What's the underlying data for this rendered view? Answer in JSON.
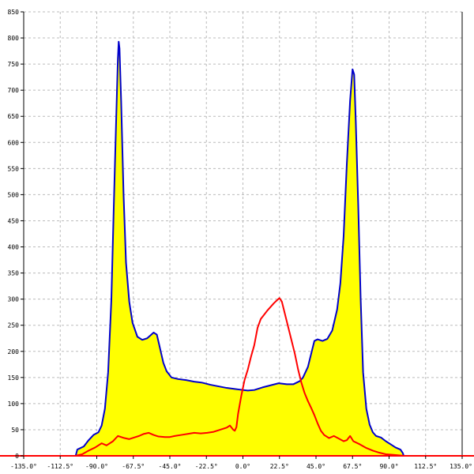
{
  "chart_data": {
    "type": "area",
    "title": "",
    "xlabel": "",
    "ylabel": "",
    "xlim": [
      -135,
      135
    ],
    "ylim": [
      0,
      850
    ],
    "grid": true,
    "x_ticks": [
      -135,
      -112.5,
      -90,
      -67.5,
      -45,
      -22.5,
      0,
      22.5,
      45,
      67.5,
      90,
      112.5,
      135
    ],
    "x_tick_labels": [
      "-135.0°",
      "-112.5°",
      "-90.0°",
      "-67.5°",
      "-45.0°",
      "-22.5°",
      "0.0°",
      "22.5°",
      "45.0°",
      "67.5°",
      "90.0°",
      "112.5°",
      "135.0°"
    ],
    "y_ticks": [
      0,
      50,
      100,
      150,
      200,
      250,
      300,
      350,
      400,
      450,
      500,
      550,
      600,
      650,
      700,
      750,
      800,
      850
    ],
    "y_tick_labels": [
      "0",
      "50",
      "100",
      "150",
      "200",
      "250",
      "300",
      "350",
      "400",
      "450",
      "500",
      "550",
      "600",
      "650",
      "700",
      "750",
      "800",
      "850"
    ],
    "series": [
      {
        "color": "#0000cc",
        "fill": "#ffff00",
        "points": [
          [
            -103,
            0
          ],
          [
            -102,
            12
          ],
          [
            -98,
            18
          ],
          [
            -95,
            30
          ],
          [
            -92,
            40
          ],
          [
            -89,
            45
          ],
          [
            -87,
            58
          ],
          [
            -85,
            90
          ],
          [
            -83,
            160
          ],
          [
            -81,
            300
          ],
          [
            -79.5,
            480
          ],
          [
            -78,
            650
          ],
          [
            -77,
            760
          ],
          [
            -76.5,
            793
          ],
          [
            -76,
            780
          ],
          [
            -75,
            680
          ],
          [
            -73.5,
            500
          ],
          [
            -72,
            370
          ],
          [
            -70,
            295
          ],
          [
            -68,
            255
          ],
          [
            -65,
            228
          ],
          [
            -62,
            222
          ],
          [
            -59,
            225
          ],
          [
            -55,
            236
          ],
          [
            -53,
            232
          ],
          [
            -51,
            205
          ],
          [
            -49,
            178
          ],
          [
            -47,
            162
          ],
          [
            -44,
            150
          ],
          [
            -40,
            147
          ],
          [
            -35,
            145
          ],
          [
            -30,
            142
          ],
          [
            -25,
            140
          ],
          [
            -20,
            136
          ],
          [
            -15,
            133
          ],
          [
            -10,
            130
          ],
          [
            -5,
            128
          ],
          [
            0,
            126
          ],
          [
            3,
            125
          ],
          [
            7,
            126
          ],
          [
            12,
            131
          ],
          [
            17,
            135
          ],
          [
            22,
            139
          ],
          [
            27,
            137
          ],
          [
            31,
            137
          ],
          [
            35,
            143
          ],
          [
            37,
            150
          ],
          [
            40,
            170
          ],
          [
            42,
            195
          ],
          [
            44,
            220
          ],
          [
            46,
            223
          ],
          [
            49,
            220
          ],
          [
            52,
            224
          ],
          [
            55,
            240
          ],
          [
            58,
            280
          ],
          [
            60,
            330
          ],
          [
            62,
            420
          ],
          [
            64,
            560
          ],
          [
            66,
            680
          ],
          [
            67.5,
            740
          ],
          [
            68.5,
            730
          ],
          [
            69.5,
            640
          ],
          [
            71,
            480
          ],
          [
            72.5,
            300
          ],
          [
            74,
            160
          ],
          [
            76,
            90
          ],
          [
            78,
            60
          ],
          [
            80,
            45
          ],
          [
            82,
            38
          ],
          [
            85,
            35
          ],
          [
            88,
            28
          ],
          [
            91,
            22
          ],
          [
            94,
            16
          ],
          [
            97,
            12
          ],
          [
            98.5,
            5
          ],
          [
            99,
            0
          ]
        ]
      },
      {
        "color": "#ff0000",
        "fill": "none",
        "points": [
          [
            -103,
            0
          ],
          [
            -99,
            3
          ],
          [
            -95,
            10
          ],
          [
            -91,
            16
          ],
          [
            -87,
            24
          ],
          [
            -84,
            20
          ],
          [
            -80,
            28
          ],
          [
            -77,
            38
          ],
          [
            -73,
            34
          ],
          [
            -70,
            32
          ],
          [
            -67,
            35
          ],
          [
            -64,
            38
          ],
          [
            -61,
            42
          ],
          [
            -58,
            44
          ],
          [
            -55,
            40
          ],
          [
            -52,
            37
          ],
          [
            -48,
            36
          ],
          [
            -45,
            36
          ],
          [
            -42,
            38
          ],
          [
            -38,
            40
          ],
          [
            -34,
            42
          ],
          [
            -30,
            44
          ],
          [
            -26,
            43
          ],
          [
            -22,
            44
          ],
          [
            -18,
            46
          ],
          [
            -14,
            50
          ],
          [
            -10,
            54
          ],
          [
            -8,
            58
          ],
          [
            -6,
            50
          ],
          [
            -5,
            48
          ],
          [
            -4,
            55
          ],
          [
            -3,
            80
          ],
          [
            -1,
            115
          ],
          [
            1,
            145
          ],
          [
            3,
            165
          ],
          [
            5,
            190
          ],
          [
            7,
            212
          ],
          [
            9,
            245
          ],
          [
            11,
            262
          ],
          [
            13,
            270
          ],
          [
            15,
            278
          ],
          [
            17,
            285
          ],
          [
            19,
            292
          ],
          [
            21,
            298
          ],
          [
            22.5,
            302
          ],
          [
            24,
            295
          ],
          [
            26,
            270
          ],
          [
            28,
            245
          ],
          [
            30,
            220
          ],
          [
            32,
            195
          ],
          [
            34,
            165
          ],
          [
            36,
            140
          ],
          [
            38,
            120
          ],
          [
            40,
            105
          ],
          [
            42,
            92
          ],
          [
            44,
            78
          ],
          [
            46,
            62
          ],
          [
            48,
            48
          ],
          [
            50,
            40
          ],
          [
            53,
            34
          ],
          [
            56,
            38
          ],
          [
            59,
            33
          ],
          [
            62,
            28
          ],
          [
            64,
            30
          ],
          [
            66,
            38
          ],
          [
            68,
            28
          ],
          [
            72,
            22
          ],
          [
            76,
            15
          ],
          [
            80,
            10
          ],
          [
            84,
            6
          ],
          [
            88,
            3
          ],
          [
            92,
            2
          ],
          [
            96,
            1
          ],
          [
            99,
            0
          ]
        ]
      }
    ],
    "baseline_color": "#ff0000",
    "axis_color": "#000000",
    "grid_color": "#bbbbbb"
  }
}
